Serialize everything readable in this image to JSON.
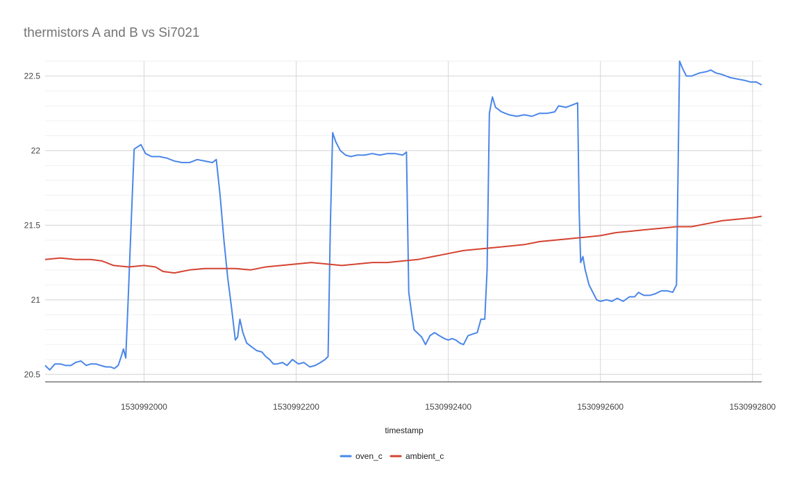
{
  "chart_data": {
    "type": "line",
    "title": "thermistors A and B vs Si7021",
    "xlabel": "timestamp",
    "ylabel": "",
    "xlim": [
      1530991870,
      1530992812
    ],
    "ylim": [
      20.45,
      22.6
    ],
    "x_ticks": [
      1530992000,
      1530992200,
      1530992400,
      1530992600,
      1530992800
    ],
    "x_tick_labels": [
      "1530992000",
      "1530992200",
      "1530992400",
      "1530992600",
      "1530992800"
    ],
    "y_ticks": [
      20.5,
      21,
      21.5,
      22,
      22.5
    ],
    "y_tick_labels": [
      "20.5",
      "21",
      "21.5",
      "22",
      "22.5"
    ],
    "grid": true,
    "legend_position": "bottom",
    "series": [
      {
        "name": "oven_c",
        "color": "#4a86e8",
        "points": [
          [
            1530991870,
            20.56
          ],
          [
            1530991876,
            20.53
          ],
          [
            1530991883,
            20.57
          ],
          [
            1530991890,
            20.57
          ],
          [
            1530991897,
            20.56
          ],
          [
            1530991904,
            20.56
          ],
          [
            1530991910,
            20.58
          ],
          [
            1530991917,
            20.59
          ],
          [
            1530991924,
            20.56
          ],
          [
            1530991930,
            20.57
          ],
          [
            1530991937,
            20.57
          ],
          [
            1530991943,
            20.56
          ],
          [
            1530991950,
            20.55
          ],
          [
            1530991956,
            20.55
          ],
          [
            1530991961,
            20.54
          ],
          [
            1530991966,
            20.56
          ],
          [
            1530991970,
            20.62
          ],
          [
            1530991973,
            20.67
          ],
          [
            1530991976,
            20.61
          ],
          [
            1530991979,
            20.98
          ],
          [
            1530991983,
            21.5
          ],
          [
            1530991987,
            22.01
          ],
          [
            1530991990,
            22.02
          ],
          [
            1530991996,
            22.04
          ],
          [
            1530992002,
            21.98
          ],
          [
            1530992010,
            21.96
          ],
          [
            1530992020,
            21.96
          ],
          [
            1530992030,
            21.95
          ],
          [
            1530992040,
            21.93
          ],
          [
            1530992050,
            21.92
          ],
          [
            1530992060,
            21.92
          ],
          [
            1530992070,
            21.94
          ],
          [
            1530992080,
            21.93
          ],
          [
            1530992090,
            21.92
          ],
          [
            1530992095,
            21.94
          ],
          [
            1530992100,
            21.7
          ],
          [
            1530992105,
            21.4
          ],
          [
            1530992110,
            21.15
          ],
          [
            1530992115,
            20.95
          ],
          [
            1530992120,
            20.73
          ],
          [
            1530992123,
            20.75
          ],
          [
            1530992126,
            20.87
          ],
          [
            1530992130,
            20.78
          ],
          [
            1530992135,
            20.71
          ],
          [
            1530992140,
            20.69
          ],
          [
            1530992148,
            20.66
          ],
          [
            1530992155,
            20.65
          ],
          [
            1530992160,
            20.62
          ],
          [
            1530992165,
            20.6
          ],
          [
            1530992170,
            20.57
          ],
          [
            1530992175,
            20.57
          ],
          [
            1530992182,
            20.58
          ],
          [
            1530992188,
            20.56
          ],
          [
            1530992195,
            20.6
          ],
          [
            1530992203,
            20.57
          ],
          [
            1530992210,
            20.58
          ],
          [
            1530992218,
            20.55
          ],
          [
            1530992225,
            20.56
          ],
          [
            1530992232,
            20.58
          ],
          [
            1530992238,
            20.6
          ],
          [
            1530992242,
            20.62
          ],
          [
            1530992245,
            21.5
          ],
          [
            1530992248,
            22.12
          ],
          [
            1530992252,
            22.06
          ],
          [
            1530992258,
            22.0
          ],
          [
            1530992265,
            21.97
          ],
          [
            1530992272,
            21.96
          ],
          [
            1530992280,
            21.97
          ],
          [
            1530992290,
            21.97
          ],
          [
            1530992300,
            21.98
          ],
          [
            1530992310,
            21.97
          ],
          [
            1530992320,
            21.98
          ],
          [
            1530992330,
            21.98
          ],
          [
            1530992340,
            21.97
          ],
          [
            1530992345,
            21.99
          ],
          [
            1530992348,
            21.05
          ],
          [
            1530992352,
            20.9
          ],
          [
            1530992355,
            20.8
          ],
          [
            1530992359,
            20.78
          ],
          [
            1530992365,
            20.75
          ],
          [
            1530992370,
            20.7
          ],
          [
            1530992376,
            20.76
          ],
          [
            1530992382,
            20.78
          ],
          [
            1530992388,
            20.76
          ],
          [
            1530992395,
            20.74
          ],
          [
            1530992400,
            20.73
          ],
          [
            1530992405,
            20.74
          ],
          [
            1530992410,
            20.73
          ],
          [
            1530992415,
            20.71
          ],
          [
            1530992420,
            20.7
          ],
          [
            1530992426,
            20.76
          ],
          [
            1530992432,
            20.77
          ],
          [
            1530992438,
            20.78
          ],
          [
            1530992443,
            20.87
          ],
          [
            1530992448,
            20.87
          ],
          [
            1530992451,
            21.2
          ],
          [
            1530992454,
            22.25
          ],
          [
            1530992458,
            22.36
          ],
          [
            1530992462,
            22.29
          ],
          [
            1530992470,
            22.26
          ],
          [
            1530992480,
            22.24
          ],
          [
            1530992490,
            22.23
          ],
          [
            1530992500,
            22.24
          ],
          [
            1530992510,
            22.23
          ],
          [
            1530992520,
            22.25
          ],
          [
            1530992530,
            22.25
          ],
          [
            1530992540,
            22.26
          ],
          [
            1530992545,
            22.3
          ],
          [
            1530992555,
            22.29
          ],
          [
            1530992565,
            22.31
          ],
          [
            1530992570,
            22.32
          ],
          [
            1530992572,
            21.6
          ],
          [
            1530992574,
            21.25
          ],
          [
            1530992577,
            21.29
          ],
          [
            1530992580,
            21.2
          ],
          [
            1530992585,
            21.1
          ],
          [
            1530992590,
            21.05
          ],
          [
            1530992595,
            21.0
          ],
          [
            1530992600,
            20.99
          ],
          [
            1530992608,
            21.0
          ],
          [
            1530992615,
            20.99
          ],
          [
            1530992622,
            21.01
          ],
          [
            1530992630,
            20.99
          ],
          [
            1530992638,
            21.02
          ],
          [
            1530992645,
            21.02
          ],
          [
            1530992650,
            21.05
          ],
          [
            1530992657,
            21.03
          ],
          [
            1530992665,
            21.03
          ],
          [
            1530992672,
            21.04
          ],
          [
            1530992680,
            21.06
          ],
          [
            1530992688,
            21.06
          ],
          [
            1530992695,
            21.05
          ],
          [
            1530992700,
            21.1
          ],
          [
            1530992704,
            22.6
          ],
          [
            1530992708,
            22.55
          ],
          [
            1530992713,
            22.5
          ],
          [
            1530992720,
            22.5
          ],
          [
            1530992730,
            22.52
          ],
          [
            1530992740,
            22.53
          ],
          [
            1530992745,
            22.54
          ],
          [
            1530992752,
            22.52
          ],
          [
            1530992760,
            22.51
          ],
          [
            1530992770,
            22.49
          ],
          [
            1530992780,
            22.48
          ],
          [
            1530992790,
            22.47
          ],
          [
            1530992797,
            22.46
          ],
          [
            1530992805,
            22.46
          ],
          [
            1530992812,
            22.44
          ]
        ]
      },
      {
        "name": "ambient_c",
        "color": "#d44331",
        "points": [
          [
            1530991870,
            21.27
          ],
          [
            1530991890,
            21.28
          ],
          [
            1530991910,
            21.27
          ],
          [
            1530991930,
            21.27
          ],
          [
            1530991945,
            21.26
          ],
          [
            1530991960,
            21.23
          ],
          [
            1530991980,
            21.22
          ],
          [
            1530992000,
            21.23
          ],
          [
            1530992015,
            21.22
          ],
          [
            1530992025,
            21.19
          ],
          [
            1530992040,
            21.18
          ],
          [
            1530992060,
            21.2
          ],
          [
            1530992080,
            21.21
          ],
          [
            1530992100,
            21.21
          ],
          [
            1530992120,
            21.21
          ],
          [
            1530992140,
            21.2
          ],
          [
            1530992160,
            21.22
          ],
          [
            1530992180,
            21.23
          ],
          [
            1530992200,
            21.24
          ],
          [
            1530992220,
            21.25
          ],
          [
            1530992240,
            21.24
          ],
          [
            1530992260,
            21.23
          ],
          [
            1530992280,
            21.24
          ],
          [
            1530992300,
            21.25
          ],
          [
            1530992320,
            21.25
          ],
          [
            1530992340,
            21.26
          ],
          [
            1530992360,
            21.27
          ],
          [
            1530992380,
            21.29
          ],
          [
            1530992400,
            21.31
          ],
          [
            1530992420,
            21.33
          ],
          [
            1530992440,
            21.34
          ],
          [
            1530992460,
            21.35
          ],
          [
            1530992480,
            21.36
          ],
          [
            1530992500,
            21.37
          ],
          [
            1530992520,
            21.39
          ],
          [
            1530992540,
            21.4
          ],
          [
            1530992560,
            21.41
          ],
          [
            1530992580,
            21.42
          ],
          [
            1530992600,
            21.43
          ],
          [
            1530992620,
            21.45
          ],
          [
            1530992640,
            21.46
          ],
          [
            1530992660,
            21.47
          ],
          [
            1530992680,
            21.48
          ],
          [
            1530992700,
            21.49
          ],
          [
            1530992720,
            21.49
          ],
          [
            1530992740,
            21.51
          ],
          [
            1530992760,
            21.53
          ],
          [
            1530992780,
            21.54
          ],
          [
            1530992800,
            21.55
          ],
          [
            1530992812,
            21.56
          ]
        ]
      }
    ]
  }
}
